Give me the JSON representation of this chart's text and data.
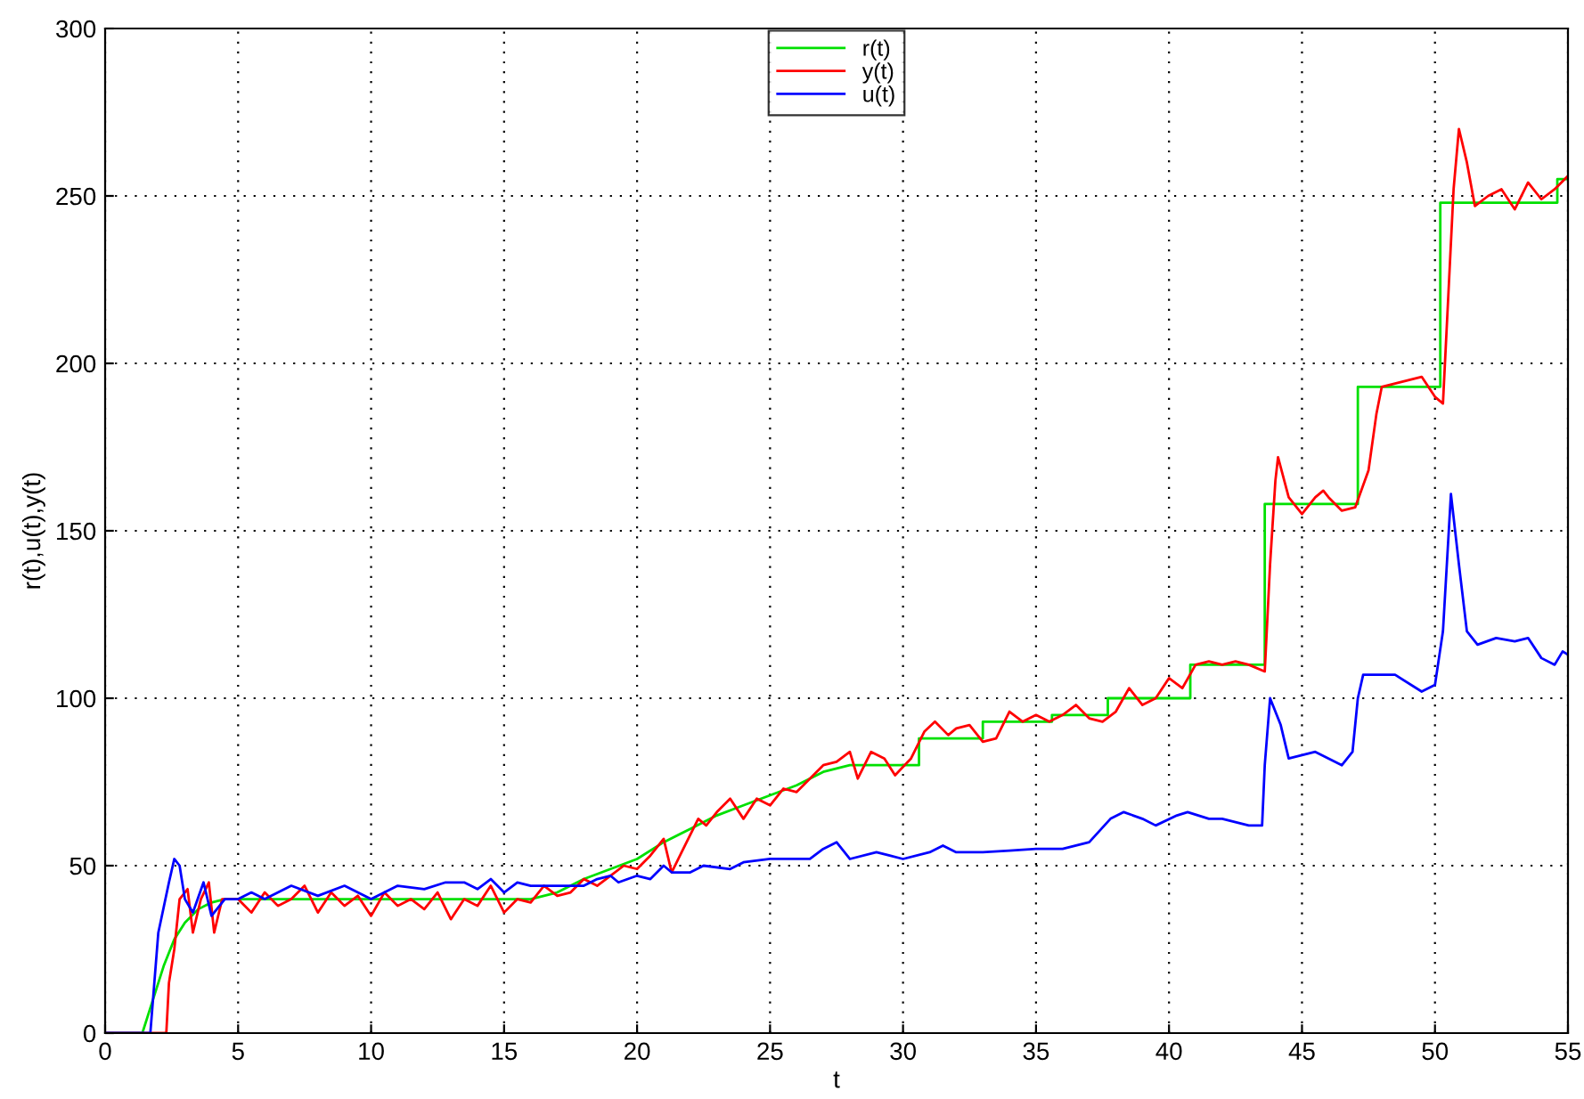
{
  "chart_data": {
    "type": "line",
    "xlabel": "t",
    "ylabel": "r(t),u(t),y(t)",
    "xlim": [
      0,
      55
    ],
    "ylim": [
      0,
      300
    ],
    "xticks": [
      0,
      5,
      10,
      15,
      20,
      25,
      30,
      35,
      40,
      45,
      50,
      55
    ],
    "yticks": [
      0,
      50,
      100,
      150,
      200,
      250,
      300
    ],
    "grid": true,
    "legend": "top",
    "marker": "none",
    "line_style": "solid",
    "series": [
      {
        "name": "r(t)",
        "color": "#00e000",
        "x": [
          0,
          1.4,
          1.8,
          2.2,
          2.6,
          3,
          3.5,
          4,
          4.5,
          16,
          17,
          18,
          19,
          20,
          21,
          22,
          23,
          24,
          25,
          26,
          27,
          28,
          30.6,
          30.6,
          33,
          33,
          35.6,
          35.6,
          37.7,
          37.7,
          40.8,
          40.8,
          43.6,
          43.6,
          47.1,
          47.1,
          50.2,
          50.2,
          54.6,
          54.6,
          55
        ],
        "values": [
          0,
          0,
          10,
          20,
          28,
          33,
          37,
          39,
          40,
          40,
          42,
          46,
          49,
          52,
          57,
          61,
          65,
          68,
          71,
          74,
          78,
          80,
          80,
          88,
          88,
          93,
          93,
          95,
          95,
          100,
          100,
          110,
          110,
          158,
          158,
          193,
          193,
          248,
          248,
          255,
          255
        ]
      },
      {
        "name": "y(t)",
        "color": "#ff0000",
        "x": [
          0,
          2.3,
          2.4,
          2.6,
          2.8,
          3.1,
          3.3,
          3.6,
          3.9,
          4.1,
          4.4,
          5,
          5.5,
          6,
          6.5,
          7,
          7.5,
          8,
          8.5,
          9,
          9.5,
          10,
          10.5,
          11,
          11.5,
          12,
          12.5,
          13,
          13.5,
          14,
          14.5,
          15,
          15.5,
          16,
          16.5,
          17,
          17.5,
          18,
          18.5,
          19,
          19.5,
          20,
          20.5,
          21,
          21.3,
          21.8,
          22.3,
          22.6,
          23,
          23.5,
          24,
          24.5,
          25,
          25.5,
          26,
          26.5,
          27,
          27.5,
          28,
          28.3,
          28.8,
          29.3,
          29.7,
          30.3,
          30.8,
          31.2,
          31.7,
          32,
          32.5,
          33,
          33.5,
          34,
          34.5,
          35,
          35.5,
          36,
          36.5,
          37,
          37.5,
          38,
          38.5,
          39,
          39.5,
          40,
          40.5,
          41,
          41.5,
          42,
          42.5,
          43,
          43.6,
          43.8,
          44,
          44.1,
          44.5,
          45,
          45.5,
          45.8,
          46,
          46.5,
          47,
          47.5,
          47.8,
          48,
          48.5,
          49,
          49.5,
          50,
          50.3,
          50.5,
          50.7,
          50.9,
          51.2,
          51.5,
          52,
          52.5,
          53,
          53.5,
          54,
          54.5,
          55
        ],
        "values": [
          0,
          0,
          15,
          25,
          40,
          43,
          30,
          40,
          45,
          30,
          40,
          40,
          36,
          42,
          38,
          40,
          44,
          36,
          42,
          38,
          41,
          35,
          42,
          38,
          40,
          37,
          42,
          34,
          40,
          38,
          44,
          36,
          40,
          39,
          44,
          41,
          42,
          46,
          44,
          47,
          50,
          49,
          53,
          58,
          48,
          56,
          64,
          62,
          66,
          70,
          64,
          70,
          68,
          73,
          72,
          76,
          80,
          81,
          84,
          76,
          84,
          82,
          77,
          82,
          90,
          93,
          89,
          91,
          92,
          87,
          88,
          96,
          93,
          95,
          93,
          95,
          98,
          94,
          93,
          96,
          103,
          98,
          100,
          106,
          103,
          110,
          111,
          110,
          111,
          110,
          108,
          140,
          165,
          172,
          160,
          155,
          160,
          162,
          160,
          156,
          157,
          168,
          185,
          193,
          194,
          195,
          196,
          190,
          188,
          220,
          252,
          270,
          260,
          247,
          250,
          252,
          246,
          254,
          249,
          252,
          256
        ]
      },
      {
        "name": "u(t)",
        "color": "#0000ff",
        "x": [
          0,
          1.7,
          2,
          2.4,
          2.6,
          2.8,
          3,
          3.3,
          3.7,
          4,
          4.5,
          5,
          5.5,
          6,
          7,
          8,
          9,
          10,
          11,
          12,
          12.8,
          13.5,
          14,
          14.5,
          15,
          15.5,
          16,
          17,
          18,
          18.5,
          19,
          19.3,
          20,
          20.5,
          21,
          21.3,
          22,
          22.5,
          23.5,
          24,
          25,
          26.5,
          27,
          27.5,
          28,
          29,
          29.5,
          30,
          31,
          31.5,
          32,
          33,
          34,
          35,
          36,
          37,
          37.8,
          38.3,
          39,
          39.5,
          40.3,
          40.7,
          41.5,
          42,
          43,
          43.5,
          43.6,
          43.8,
          44.2,
          44.5,
          45.5,
          46.5,
          46.9,
          47.1,
          47.3,
          48.5,
          49.5,
          50,
          50.3,
          50.6,
          50.9,
          51.2,
          51.6,
          52.3,
          53,
          53.5,
          54,
          54.5,
          54.8,
          55
        ],
        "values": [
          0,
          0,
          30,
          45,
          52,
          50,
          40,
          36,
          45,
          35,
          40,
          40,
          42,
          40,
          44,
          41,
          44,
          40,
          44,
          43,
          45,
          45,
          43,
          46,
          42,
          45,
          44,
          44,
          44,
          46,
          47,
          45,
          47,
          46,
          50,
          48,
          48,
          50,
          49,
          51,
          52,
          52,
          55,
          57,
          52,
          54,
          53,
          52,
          54,
          56,
          54,
          54,
          54.5,
          55,
          55,
          57,
          64,
          66,
          64,
          62,
          65,
          66,
          64,
          64,
          62,
          62,
          80,
          100,
          92,
          82,
          84,
          80,
          84,
          100,
          107,
          107,
          102,
          104,
          120,
          161,
          140,
          120,
          116,
          118,
          117,
          118,
          112,
          110,
          114,
          113
        ]
      }
    ]
  }
}
